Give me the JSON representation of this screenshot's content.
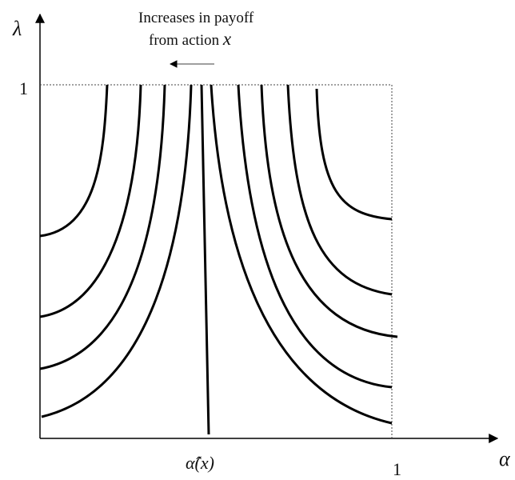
{
  "diagram": {
    "y_axis_label": "λ",
    "x_axis_label": "α",
    "y_tick_label": "1",
    "x_tick_label": "1",
    "alpha_hat_label": "α̂(x)",
    "annotation_line1": "Increases in payoff",
    "annotation_line2_text": "from action ",
    "annotation_line2_var": "x",
    "line_color": "#000000",
    "dotted_color": "#444444"
  }
}
